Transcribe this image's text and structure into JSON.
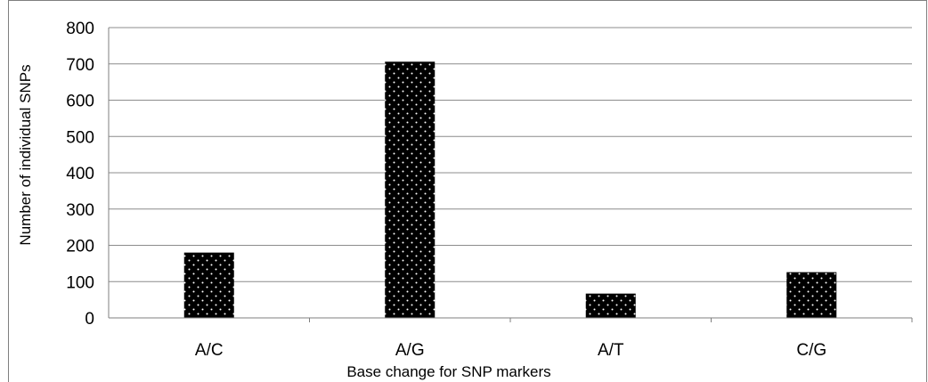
{
  "chart_data": {
    "type": "bar",
    "categories": [
      "A/C",
      "A/G",
      "A/T",
      "C/G"
    ],
    "values": [
      180,
      706,
      67,
      126
    ],
    "title": "",
    "xlabel": "Base change for SNP markers",
    "ylabel": "Number of individual SNPs",
    "ylim": [
      0,
      800
    ],
    "yticks": [
      "0",
      "100",
      "200",
      "300",
      "400",
      "500",
      "600",
      "700",
      "800"
    ],
    "grid": true,
    "bar_fill": "black with white dot pattern",
    "colors": {
      "bar": "#000000",
      "dot": "#ffffff",
      "grid": "#8c8c8c",
      "axis": "#7f7f7f"
    }
  }
}
